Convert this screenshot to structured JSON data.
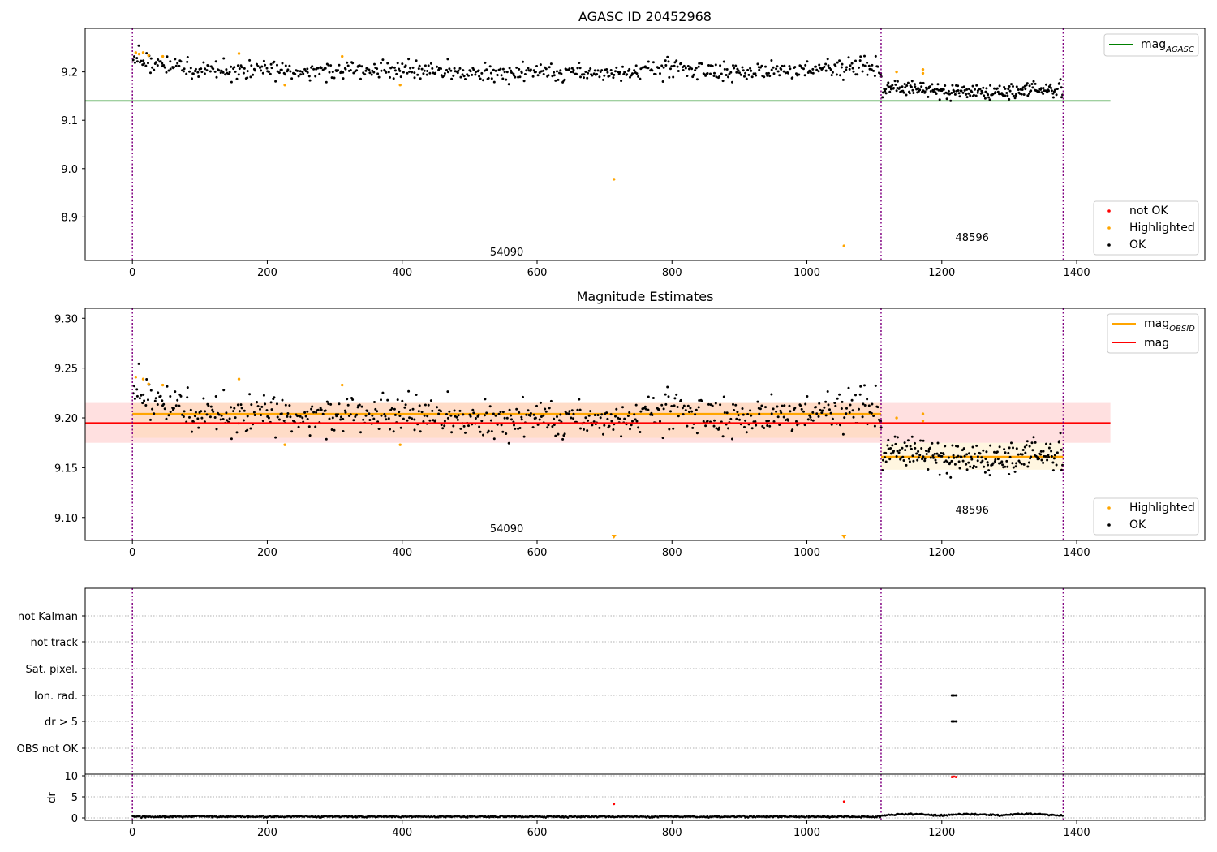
{
  "colors": {
    "ok": "#000000",
    "highlighted": "#ffa500",
    "not_ok": "#ff0000",
    "agasc_line": "#008000",
    "mag_line": "#ff0000",
    "obsid_line": "#ffa500",
    "obs_boundary": "#800080",
    "mag_band": "#ffcccc",
    "obsid_band_1": "#ffd9b3",
    "obsid_band_2": "#ffefc6"
  },
  "chart_data": [
    {
      "type": "scatter",
      "title": "AGASC ID 20452968",
      "xlabel": "",
      "ylabel": "",
      "xlim": [
        -70,
        1590
      ],
      "ylim": [
        8.81,
        9.29
      ],
      "x_ticks": [
        "0",
        "200",
        "400",
        "600",
        "800",
        "1000",
        "1200",
        "1400"
      ],
      "y_ticks": [
        "8.9",
        "9.0",
        "9.1",
        "9.2"
      ],
      "y_tick_values": [
        8.9,
        9.0,
        9.1,
        9.2
      ],
      "grid": false,
      "legend_placement": [
        "top-right",
        "bottom-right"
      ],
      "obs_boundaries": [
        0,
        1110,
        1380
      ],
      "obs_labels": [
        {
          "x": 555,
          "y": 8.82,
          "text": "54090"
        },
        {
          "x": 1245,
          "y": 8.85,
          "text": "48596"
        }
      ],
      "lines": [
        {
          "name": "mag",
          "sub": "AGASC",
          "y": 9.14,
          "x_range": [
            -70,
            1450
          ],
          "color": "#008000"
        }
      ],
      "series": [
        {
          "name": "OK",
          "segments": [
            {
              "x_range": [
                0,
                1110
              ],
              "trend": [
                [
                  0,
                  9.225
                ],
                [
                  30,
                  9.218
                ],
                [
                  80,
                  9.205
                ],
                [
                  150,
                  9.2
                ],
                [
                  200,
                  9.205
                ],
                [
                  300,
                  9.203
                ],
                [
                  400,
                  9.205
                ],
                [
                  500,
                  9.197
                ],
                [
                  600,
                  9.2
                ],
                [
                  700,
                  9.198
                ],
                [
                  800,
                  9.208
                ],
                [
                  900,
                  9.198
                ],
                [
                  1000,
                  9.205
                ],
                [
                  1110,
                  9.21
                ]
              ],
              "spread": 0.012,
              "count": 650
            },
            {
              "x_range": [
                1110,
                1380
              ],
              "trend": [
                [
                  1110,
                  9.17
                ],
                [
                  1200,
                  9.16
                ],
                [
                  1300,
                  9.16
                ],
                [
                  1380,
                  9.165
                ]
              ],
              "spread": 0.01,
              "count": 220
            }
          ]
        },
        {
          "name": "Highlighted",
          "points": [
            [
              5,
              9.24
            ],
            [
              10,
              9.237
            ],
            [
              16,
              9.24
            ],
            [
              24,
              9.234
            ],
            [
              45,
              9.232
            ],
            [
              158,
              9.238
            ],
            [
              226,
              9.173
            ],
            [
              311,
              9.232
            ],
            [
              397,
              9.173
            ],
            [
              714,
              8.978
            ],
            [
              1055,
              8.84
            ],
            [
              1133,
              9.2
            ],
            [
              1172,
              9.205
            ],
            [
              1172,
              9.197
            ]
          ]
        },
        {
          "name": "not OK",
          "points": []
        }
      ]
    },
    {
      "type": "scatter",
      "title": "Magnitude Estimates",
      "xlabel": "",
      "ylabel": "",
      "xlim": [
        -70,
        1590
      ],
      "ylim": [
        9.077,
        9.31
      ],
      "x_ticks": [
        "0",
        "200",
        "400",
        "600",
        "800",
        "1000",
        "1200",
        "1400"
      ],
      "y_ticks": [
        "9.10",
        "9.15",
        "9.20",
        "9.25",
        "9.30"
      ],
      "y_tick_values": [
        9.1,
        9.15,
        9.2,
        9.25,
        9.3
      ],
      "grid": false,
      "legend_placement": [
        "top-right",
        "bottom-right"
      ],
      "obs_boundaries": [
        0,
        1110,
        1380
      ],
      "obs_labels": [
        {
          "x": 555,
          "y": 9.085,
          "text": "54090"
        },
        {
          "x": 1245,
          "y": 9.104,
          "text": "48596"
        }
      ],
      "lines": [
        {
          "name": "mag",
          "sub": "OBSID",
          "segments": [
            {
              "x_range": [
                0,
                1110
              ],
              "y": 9.204
            },
            {
              "x_range": [
                1110,
                1380
              ],
              "y": 9.161
            }
          ],
          "color": "#ffa500"
        },
        {
          "name": "mag",
          "sub": "",
          "y": 9.195,
          "x_range": [
            -70,
            1450
          ],
          "color": "#ff0000"
        }
      ],
      "bands": [
        {
          "x_range": [
            -70,
            1450
          ],
          "y_range": [
            9.175,
            9.215
          ],
          "color": "#ffcccc"
        },
        {
          "x_range": [
            0,
            1110
          ],
          "y_range": [
            9.18,
            9.215
          ],
          "color": "#ffd9b3"
        },
        {
          "x_range": [
            1110,
            1380
          ],
          "y_range": [
            9.148,
            9.175
          ],
          "color": "#ffefc6"
        }
      ],
      "series": [
        {
          "name": "OK",
          "segments": [
            {
              "x_range": [
                0,
                1110
              ],
              "trend": [
                [
                  0,
                  9.225
                ],
                [
                  30,
                  9.218
                ],
                [
                  80,
                  9.205
                ],
                [
                  150,
                  9.2
                ],
                [
                  200,
                  9.205
                ],
                [
                  300,
                  9.203
                ],
                [
                  400,
                  9.205
                ],
                [
                  500,
                  9.197
                ],
                [
                  600,
                  9.2
                ],
                [
                  700,
                  9.198
                ],
                [
                  800,
                  9.208
                ],
                [
                  900,
                  9.198
                ],
                [
                  1000,
                  9.205
                ],
                [
                  1110,
                  9.21
                ]
              ],
              "spread": 0.012,
              "count": 650
            },
            {
              "x_range": [
                1110,
                1380
              ],
              "trend": [
                [
                  1110,
                  9.17
                ],
                [
                  1200,
                  9.16
                ],
                [
                  1300,
                  9.16
                ],
                [
                  1380,
                  9.165
                ]
              ],
              "spread": 0.01,
              "count": 220
            }
          ]
        },
        {
          "name": "Highlighted",
          "points": [
            [
              5,
              9.241
            ],
            [
              16,
              9.239
            ],
            [
              24,
              9.234
            ],
            [
              45,
              9.233
            ],
            [
              158,
              9.239
            ],
            [
              226,
              9.173
            ],
            [
              311,
              9.233
            ],
            [
              397,
              9.173
            ],
            [
              1133,
              9.2
            ],
            [
              1172,
              9.204
            ],
            [
              1172,
              9.197
            ]
          ],
          "off_scale_below": [
            714,
            1055
          ]
        }
      ]
    },
    {
      "type": "scatter",
      "title": "",
      "xlabel": "",
      "ylabel": "",
      "xlim": [
        -70,
        1590
      ],
      "x_ticks": [
        "0",
        "200",
        "400",
        "600",
        "800",
        "1000",
        "1200",
        "1400"
      ],
      "categories": [
        "not Kalman",
        "not track",
        "Sat. pixel.",
        "Ion. rad.",
        "dr > 5",
        "OBS not OK"
      ],
      "flag_points": [
        {
          "category": "Ion. rad.",
          "x": [
            1215,
            1218,
            1221
          ]
        },
        {
          "category": "dr > 5",
          "x": [
            1215,
            1218,
            1221
          ]
        }
      ],
      "grid": true,
      "obs_boundaries": [
        0,
        1110,
        1380
      ]
    },
    {
      "type": "scatter",
      "title": "",
      "xlabel": "",
      "ylabel": "dr",
      "xlim": [
        -70,
        1590
      ],
      "ylim": [
        -0.5,
        10.5
      ],
      "x_ticks": [
        "0",
        "200",
        "400",
        "600",
        "800",
        "1000",
        "1200",
        "1400"
      ],
      "y_ticks": [
        "0",
        "5",
        "10"
      ],
      "y_tick_values": [
        0,
        5,
        10
      ],
      "grid": true,
      "obs_boundaries": [
        0,
        1110,
        1380
      ],
      "series": [
        {
          "name": "OK",
          "baseline": 0.3,
          "spread": 0.15,
          "x_range": [
            0,
            1380
          ],
          "count": 900
        },
        {
          "name": "not OK",
          "points": [
            [
              714,
              3.3
            ],
            [
              1055,
              3.9
            ],
            [
              1215,
              9.7
            ],
            [
              1218,
              9.8
            ],
            [
              1221,
              9.7
            ]
          ]
        }
      ]
    }
  ],
  "legends": {
    "panel1_top": [
      {
        "label": "mag",
        "sub": "AGASC",
        "color": "#008000"
      }
    ],
    "panel1_bottom": [
      {
        "label": "not OK",
        "color": "#ff0000"
      },
      {
        "label": "Highlighted",
        "color": "#ffa500"
      },
      {
        "label": "OK",
        "color": "#000000"
      }
    ],
    "panel2_top": [
      {
        "label": "mag",
        "sub": "OBSID",
        "color": "#ffa500"
      },
      {
        "label": "mag",
        "sub": "",
        "color": "#ff0000"
      }
    ],
    "panel2_bottom": [
      {
        "label": "Highlighted",
        "color": "#ffa500"
      },
      {
        "label": "OK",
        "color": "#000000"
      }
    ]
  }
}
